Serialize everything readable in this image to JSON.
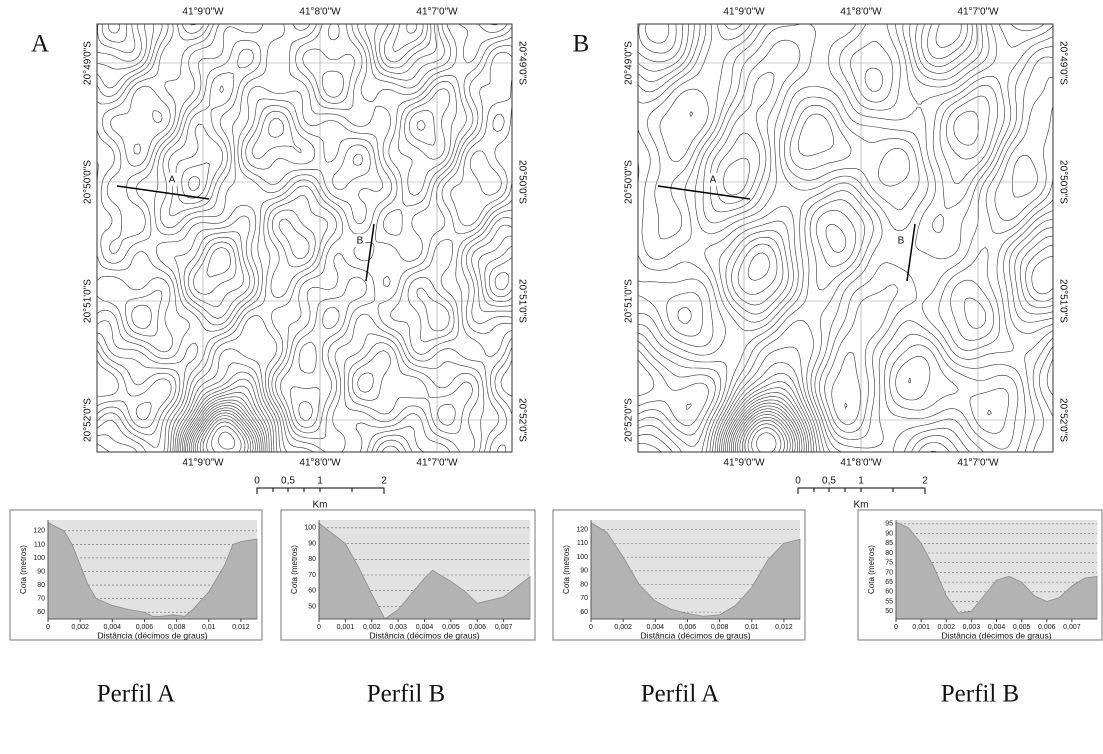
{
  "maps": [
    {
      "label": "A",
      "lon_labels": [
        "41°9'0\"W",
        "41°8'0\"W",
        "41°7'0\"W"
      ],
      "lat_labels": [
        "20°49'0\"S",
        "20°50'0\"S",
        "20°51'0\"S",
        "20°52'0\"S"
      ],
      "profile_labels": [
        "A",
        "B"
      ],
      "scale_labels": [
        "0",
        "0,5",
        "1",
        "2"
      ],
      "scale_unit": "Km"
    },
    {
      "label": "B",
      "lon_labels": [
        "41°9'0\"W",
        "41°8'0\"W",
        "41°7'0\"W"
      ],
      "lat_labels": [
        "20°49'0\"S",
        "20°50'0\"S",
        "20°51'0\"S",
        "20°52'0\"S"
      ],
      "profile_labels": [
        "A",
        "B"
      ],
      "scale_labels": [
        "0",
        "0,5",
        "1",
        "2"
      ],
      "scale_unit": "Km"
    }
  ],
  "chart_data": [
    {
      "type": "area",
      "title": "Perfil A",
      "ylabel": "Cota (metros)",
      "xlabel": "Distância (décimos de graus)",
      "grid": true,
      "color": "#b3b3b3",
      "x": [
        0,
        0.001,
        0.0015,
        0.002,
        0.0025,
        0.003,
        0.004,
        0.005,
        0.006,
        0.0065,
        0.007,
        0.0078,
        0.0085,
        0.009,
        0.01,
        0.011,
        0.0115,
        0.012,
        0.013
      ],
      "values": [
        126,
        120,
        110,
        95,
        80,
        70,
        65,
        62,
        60,
        57,
        57,
        58,
        57,
        62,
        75,
        95,
        110,
        112,
        114
      ],
      "xlim": [
        0,
        0.013
      ],
      "ylim": [
        55,
        128
      ],
      "xticks": [
        0,
        {
          "value": 0.002,
          "label": "0,002"
        },
        {
          "value": 0.004,
          "label": "0,004"
        },
        {
          "value": 0.006,
          "label": "0,006"
        },
        {
          "value": 0.008,
          "label": "0,008"
        },
        {
          "value": 0.01,
          "label": "0,01"
        },
        {
          "value": 0.012,
          "label": "0,012"
        }
      ],
      "yticks": [
        60,
        70,
        80,
        90,
        100,
        110,
        120
      ]
    },
    {
      "type": "area",
      "title": "Perfil B",
      "ylabel": "Cota (metros)",
      "xlabel": "Distância (décimos de graus)",
      "grid": true,
      "color": "#b3b3b3",
      "x": [
        0,
        0.001,
        0.0015,
        0.002,
        0.0025,
        0.003,
        0.0035,
        0.004,
        0.0043,
        0.005,
        0.0055,
        0.006,
        0.007,
        0.008
      ],
      "values": [
        103,
        90,
        75,
        58,
        42,
        48,
        58,
        68,
        73,
        66,
        60,
        52,
        56,
        69
      ],
      "xlim": [
        0,
        0.008
      ],
      "ylim": [
        42,
        105
      ],
      "xticks": [
        0,
        {
          "value": 0.001,
          "label": "0,001"
        },
        {
          "value": 0.002,
          "label": "0,002"
        },
        {
          "value": 0.003,
          "label": "0,003"
        },
        {
          "value": 0.004,
          "label": "0,004"
        },
        {
          "value": 0.005,
          "label": "0,005"
        },
        {
          "value": 0.006,
          "label": "0,006"
        },
        {
          "value": 0.007,
          "label": "0,007"
        }
      ],
      "yticks": [
        50,
        60,
        70,
        80,
        90,
        100
      ]
    },
    {
      "type": "area",
      "title": "Perfil A",
      "ylabel": "Cota (metros)",
      "xlabel": "Distância (décimos de graus)",
      "grid": true,
      "color": "#b3b3b3",
      "x": [
        0,
        0.001,
        0.002,
        0.003,
        0.004,
        0.005,
        0.006,
        0.007,
        0.008,
        0.009,
        0.01,
        0.011,
        0.012,
        0.013
      ],
      "values": [
        125,
        118,
        100,
        80,
        68,
        62,
        59,
        57,
        58,
        65,
        78,
        98,
        110,
        113
      ],
      "xlim": [
        0,
        0.013
      ],
      "ylim": [
        55,
        127
      ],
      "xticks": [
        0,
        {
          "value": 0.002,
          "label": "0,002"
        },
        {
          "value": 0.004,
          "label": "0,004"
        },
        {
          "value": 0.006,
          "label": "0,006"
        },
        {
          "value": 0.008,
          "label": "0,008"
        },
        {
          "value": 0.01,
          "label": "0,01"
        },
        {
          "value": 0.012,
          "label": "0,012"
        }
      ],
      "yticks": [
        60,
        70,
        80,
        90,
        100,
        110,
        120
      ]
    },
    {
      "type": "area",
      "title": "Perfil B",
      "ylabel": "Cota (metros)",
      "xlabel": "Distância (décimos de graus)",
      "grid": true,
      "color": "#b3b3b3",
      "x": [
        0,
        0.0005,
        0.001,
        0.0015,
        0.002,
        0.0025,
        0.003,
        0.0035,
        0.004,
        0.0045,
        0.005,
        0.0055,
        0.006,
        0.0065,
        0.007,
        0.0075,
        0.008
      ],
      "values": [
        96,
        93,
        85,
        73,
        58,
        49,
        50,
        58,
        66,
        68,
        65,
        58,
        55,
        57,
        63,
        67,
        68
      ],
      "xlim": [
        0,
        0.008
      ],
      "ylim": [
        46,
        97
      ],
      "xticks": [
        0,
        {
          "value": 0.001,
          "label": "0,001"
        },
        {
          "value": 0.002,
          "label": "0,002"
        },
        {
          "value": 0.003,
          "label": "0,003"
        },
        {
          "value": 0.004,
          "label": "0,004"
        },
        {
          "value": 0.005,
          "label": "0,005"
        },
        {
          "value": 0.006,
          "label": "0,006"
        },
        {
          "value": 0.007,
          "label": "0,007"
        }
      ],
      "yticks": [
        50,
        55,
        60,
        65,
        70,
        75,
        80,
        85,
        90,
        95
      ]
    }
  ]
}
